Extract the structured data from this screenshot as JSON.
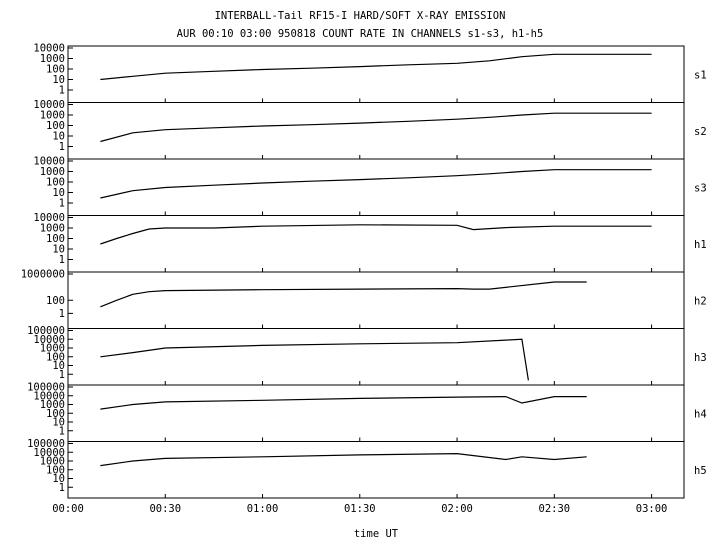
{
  "chart_data": {
    "type": "line",
    "title": "INTERBALL-Tail RF15-I HARD/SOFT X-RAY EMISSION",
    "subtitle": "AUR 00:10 03:00 950818  COUNT RATE IN CHANNELS s1-s3, h1-h5",
    "xlabel": "time UT",
    "x_ticks": [
      "00:00",
      "00:30",
      "01:00",
      "01:30",
      "02:00",
      "02:30",
      "03:00"
    ],
    "xlim": [
      "00:00",
      "03:10"
    ],
    "yscale": "log",
    "grid": false,
    "panels": [
      {
        "name": "s1",
        "y_ticks": [
          "10000",
          "1000",
          "100",
          "10",
          "1"
        ],
        "ylim": [
          0.1,
          10000
        ],
        "x": [
          "00:10",
          "00:20",
          "00:30",
          "00:45",
          "01:00",
          "01:15",
          "01:30",
          "01:45",
          "02:00",
          "02:10",
          "02:20",
          "02:30",
          "03:00"
        ],
        "values": [
          10,
          20,
          40,
          60,
          90,
          120,
          170,
          250,
          350,
          600,
          1500,
          2500,
          2500
        ]
      },
      {
        "name": "s2",
        "y_ticks": [
          "10000",
          "1000",
          "100",
          "10",
          "1"
        ],
        "ylim": [
          0.1,
          10000
        ],
        "x": [
          "00:10",
          "00:20",
          "00:30",
          "00:45",
          "01:00",
          "01:15",
          "01:30",
          "01:45",
          "02:00",
          "02:10",
          "02:20",
          "02:30",
          "03:00"
        ],
        "values": [
          3,
          20,
          40,
          60,
          90,
          120,
          170,
          250,
          400,
          600,
          1000,
          1500,
          1500
        ]
      },
      {
        "name": "s3",
        "y_ticks": [
          "10000",
          "1000",
          "100",
          "10",
          "1"
        ],
        "ylim": [
          0.1,
          10000
        ],
        "x": [
          "00:10",
          "00:20",
          "00:30",
          "00:45",
          "01:00",
          "01:15",
          "01:30",
          "01:45",
          "02:00",
          "02:10",
          "02:20",
          "02:30",
          "03:00"
        ],
        "values": [
          3,
          15,
          30,
          50,
          80,
          120,
          170,
          250,
          400,
          600,
          1000,
          1500,
          1500
        ]
      },
      {
        "name": "h1",
        "y_ticks": [
          "10000",
          "1000",
          "100",
          "10",
          "1"
        ],
        "ylim": [
          0.1,
          10000
        ],
        "x": [
          "00:10",
          "00:15",
          "00:20",
          "00:25",
          "00:30",
          "00:45",
          "01:00",
          "01:30",
          "02:00",
          "02:05",
          "02:15",
          "02:30",
          "03:00"
        ],
        "values": [
          30,
          100,
          300,
          800,
          1000,
          1000,
          1500,
          2000,
          1800,
          700,
          1100,
          1500,
          1500
        ]
      },
      {
        "name": "h2",
        "y_ticks": [
          "1000000",
          "100",
          "1"
        ],
        "ylim": [
          0.01,
          1000000
        ],
        "x": [
          "00:10",
          "00:15",
          "00:20",
          "00:25",
          "00:30",
          "01:00",
          "01:30",
          "02:00",
          "02:05",
          "02:10",
          "02:30",
          "02:40"
        ],
        "values": [
          10,
          100,
          800,
          2000,
          3000,
          4000,
          5000,
          6000,
          5000,
          5000,
          60000,
          60000
        ]
      },
      {
        "name": "h3",
        "y_ticks": [
          "100000",
          "10000",
          "1000",
          "100",
          "10",
          "1"
        ],
        "ylim": [
          0.1,
          100000
        ],
        "x": [
          "00:10",
          "00:20",
          "00:30",
          "01:00",
          "01:30",
          "02:00",
          "02:15",
          "02:20",
          "02:22"
        ],
        "values": [
          100,
          300,
          1000,
          2000,
          3000,
          4000,
          8000,
          10000,
          0.2
        ]
      },
      {
        "name": "h4",
        "y_ticks": [
          "100000",
          "10000",
          "1000",
          "100",
          "10",
          "1"
        ],
        "ylim": [
          0.1,
          100000
        ],
        "x": [
          "00:10",
          "00:20",
          "00:30",
          "01:00",
          "01:30",
          "02:00",
          "02:15",
          "02:20",
          "02:30",
          "02:40"
        ],
        "values": [
          300,
          1000,
          2000,
          3000,
          5000,
          7000,
          8000,
          1500,
          8000,
          8000
        ]
      },
      {
        "name": "h5",
        "y_ticks": [
          "100000",
          "10000",
          "1000",
          "100",
          "10",
          "1"
        ],
        "ylim": [
          0.1,
          100000
        ],
        "x": [
          "00:10",
          "00:20",
          "00:30",
          "01:00",
          "01:30",
          "02:00",
          "02:15",
          "02:20",
          "02:30",
          "02:40"
        ],
        "values": [
          300,
          1000,
          2000,
          3000,
          5000,
          7000,
          1500,
          3000,
          1500,
          3000
        ]
      }
    ]
  }
}
